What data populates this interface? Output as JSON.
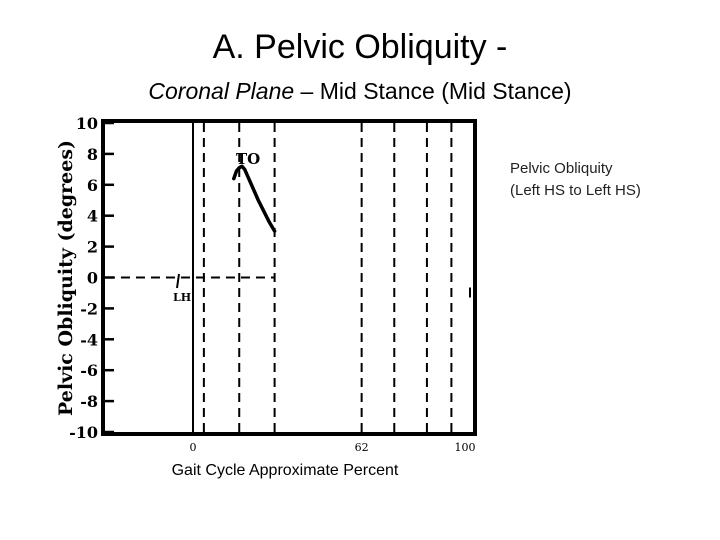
{
  "slide": {
    "title": "A. Pelvic Obliquity -",
    "subtitle_part1": "Coronal Plane",
    "subtitle_part2": " – Mid Stance (Mid Stance)"
  },
  "legend": {
    "line1": "Pelvic Obliquity",
    "line2": "(Left HS to Left HS)"
  },
  "chart_data": {
    "type": "line",
    "title": "",
    "xlabel": "Gait Cycle Approximate Percent",
    "ylabel": "Pelvic Obliquity (degrees)",
    "xlim": [
      0,
      100
    ],
    "ylim": [
      -10,
      10
    ],
    "yticks": [
      10,
      8,
      6,
      4,
      2,
      0,
      -2,
      -4,
      -6,
      -8,
      -10
    ],
    "xtick_labels": [
      {
        "label": "0",
        "value": 0
      },
      {
        "label": "62",
        "value": 62
      },
      {
        "label": "100",
        "value": 100
      }
    ],
    "annotations": {
      "to_label": "TO",
      "lh_label": "LH"
    },
    "series": [
      {
        "x": [
          15,
          16,
          17,
          18,
          19,
          20,
          22,
          24,
          26,
          28,
          30
        ],
        "values": [
          6.4,
          6.9,
          7.1,
          7.2,
          7.0,
          6.6,
          5.8,
          5.0,
          4.3,
          3.6,
          3.0
        ]
      }
    ],
    "dashed_vertical_lines_x": [
      4,
      17,
      30,
      62,
      74,
      86,
      95
    ],
    "zero_reference": {
      "x_start": -32,
      "x_end": 30
    }
  }
}
